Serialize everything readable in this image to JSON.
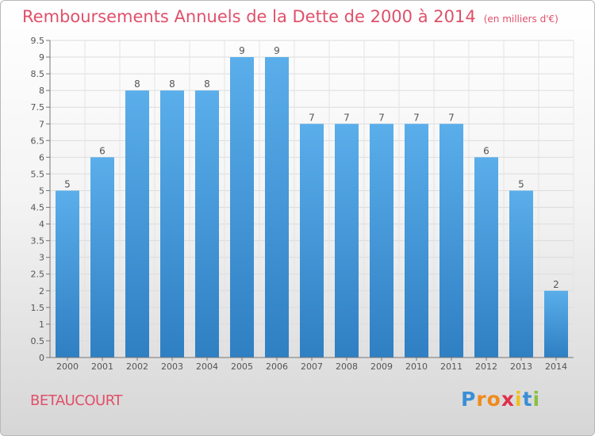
{
  "title": "Remboursements Annuels de la Dette de 2000 à 2014",
  "unit_label": "(en milliers d'€)",
  "place": "BETAUCOURT",
  "logo": {
    "letters": [
      "P",
      "r",
      "o",
      "x",
      "i",
      "t",
      "i"
    ],
    "colors": [
      "#3a8fd6",
      "#f08a1c",
      "#f08a1c",
      "#e0304a",
      "#f0c020",
      "#3a8fd6",
      "#8ac040"
    ]
  },
  "colors": {
    "bar_top": "#5aaeea",
    "bar_bottom": "#2f7fc3",
    "title": "#e0506a"
  },
  "chart_data": {
    "type": "bar",
    "title": "Remboursements Annuels de la Dette de 2000 à 2014",
    "categories": [
      "2000",
      "2001",
      "2002",
      "2003",
      "2004",
      "2005",
      "2006",
      "2007",
      "2008",
      "2009",
      "2010",
      "2011",
      "2012",
      "2013",
      "2014"
    ],
    "values": [
      5,
      6,
      8,
      8,
      8,
      9,
      9,
      7,
      7,
      7,
      7,
      7,
      6,
      5,
      2
    ],
    "data_labels": [
      "5",
      "6",
      "8",
      "8",
      "8",
      "9",
      "9",
      "7",
      "7",
      "7",
      "7",
      "7",
      "6",
      "5",
      "2"
    ],
    "ylim": [
      0,
      9.5
    ],
    "yticks": [
      "0",
      "0.5",
      "1",
      "1.5",
      "2",
      "2.5",
      "3",
      "3.5",
      "4",
      "4.5",
      "5",
      "5.5",
      "6",
      "6.5",
      "7",
      "7.5",
      "8",
      "8.5",
      "9",
      "9.5"
    ],
    "grid": true,
    "xlabel": "",
    "ylabel": ""
  }
}
